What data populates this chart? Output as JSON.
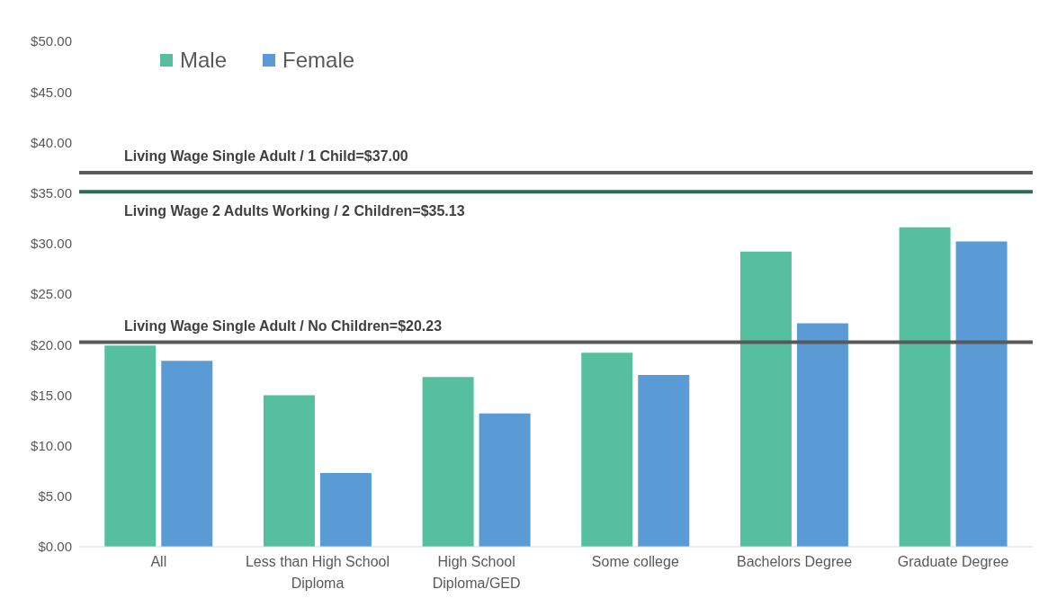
{
  "chart_data": {
    "type": "bar",
    "categories": [
      "All",
      "Less than High School Diploma",
      "High School Diploma/GED",
      "Some college",
      "Bachelors Degree",
      "Graduate Degree"
    ],
    "series": [
      {
        "name": "Male",
        "color": "#56c09e",
        "values": [
          19.9,
          15.0,
          16.8,
          19.2,
          29.2,
          31.6
        ]
      },
      {
        "name": "Female",
        "color": "#5b9bd5",
        "values": [
          18.4,
          7.3,
          13.2,
          17.0,
          22.1,
          30.2
        ]
      }
    ],
    "ylim": [
      0,
      50
    ],
    "yticks": [
      {
        "value": 0,
        "label": "$0.00"
      },
      {
        "value": 5,
        "label": "$5.00"
      },
      {
        "value": 10,
        "label": "$10.00"
      },
      {
        "value": 15,
        "label": "$15.00"
      },
      {
        "value": 20,
        "label": "$20.00"
      },
      {
        "value": 25,
        "label": "$25.00"
      },
      {
        "value": 30,
        "label": "$30.00"
      },
      {
        "value": 35,
        "label": "$35.00"
      },
      {
        "value": 40,
        "label": "$40.00"
      },
      {
        "value": 45,
        "label": "$45.00"
      },
      {
        "value": 50,
        "label": "$50.00"
      }
    ],
    "ref_lines": [
      {
        "axis": "y",
        "value": 37,
        "label": "Living Wage Single Adult / 1 Child=$37.00",
        "color": "#595959"
      },
      {
        "axis": "y",
        "value": 35.13,
        "label": "Living Wage 2 Adults Working / 2 Children=$35.13",
        "color": "#2e6b52"
      },
      {
        "axis": "y",
        "value": 20.23,
        "label": "Living Wage Single Adult / No Children=$20.23",
        "color": "#595959"
      }
    ],
    "grid": false,
    "legend": "top left"
  }
}
